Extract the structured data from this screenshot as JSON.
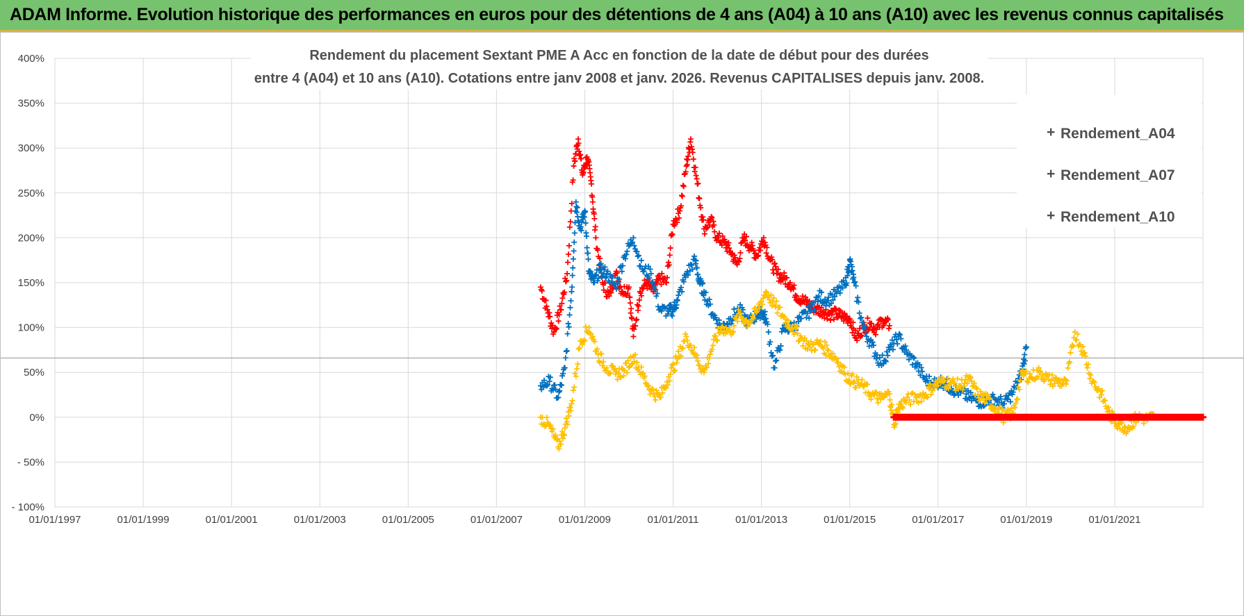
{
  "banner": {
    "title": "ADAM Informe. Evolution historique des performances en euros pour des détentions de 4 ans (A04) à 10 ans (A10) avec les revenus connus capitalisés"
  },
  "colors": {
    "banner_bg": "#77c26e",
    "A04": "#ffc000",
    "A07": "#0070c0",
    "A10": "#ff0000"
  },
  "chart_data": {
    "type": "scatter",
    "title": [
      "Rendement du placement Sextant PME A Acc en fonction de la date de début pour des durées",
      "entre 4 (A04) et 10 ans (A10). Cotations entre janv 2008 et janv. 2026. Revenus CAPITALISES depuis janv. 2008."
    ],
    "xlabel": "",
    "ylabel": "",
    "x_range": [
      1997.0,
      2023.0
    ],
    "ylim": [
      -100,
      400
    ],
    "x_ticks": [
      "01/01/1997",
      "01/01/1999",
      "01/01/2001",
      "01/01/2003",
      "01/01/2005",
      "01/01/2007",
      "01/01/2009",
      "01/01/2011",
      "01/01/2013",
      "01/01/2015",
      "01/01/2017",
      "01/01/2019",
      "01/01/2021"
    ],
    "y_ticks": [
      "- 100%",
      "- 50%",
      "0%",
      "50%",
      "100%",
      "150%",
      "200%",
      "250%",
      "300%",
      "350%",
      "400%"
    ],
    "reference_line_y": 66,
    "legend": {
      "position": "top-right",
      "entries": [
        "Rendement_A04",
        "Rendement_A07",
        "Rendement_A10"
      ]
    },
    "series": [
      {
        "name": "Rendement_A04",
        "x": [
          2008.0,
          2008.2,
          2008.4,
          2008.55,
          2008.7,
          2008.9,
          2009.1,
          2009.3,
          2009.5,
          2009.7,
          2009.9,
          2010.1,
          2010.3,
          2010.5,
          2010.7,
          2010.9,
          2011.1,
          2011.3,
          2011.5,
          2011.7,
          2011.9,
          2012.1,
          2012.3,
          2012.5,
          2012.7,
          2012.9,
          2013.1,
          2013.3,
          2013.5,
          2013.7,
          2013.9,
          2014.1,
          2014.3,
          2014.5,
          2014.7,
          2014.9,
          2015.1,
          2015.3,
          2015.5,
          2015.7,
          2015.9,
          2016.0,
          2016.1,
          2016.25,
          2016.5,
          2016.7,
          2016.9,
          2017.1,
          2017.3,
          2017.5,
          2017.7,
          2017.9,
          2018.1,
          2018.3,
          2018.5,
          2018.7,
          2018.9,
          2019.1,
          2019.3,
          2019.5,
          2019.7,
          2019.9,
          2020.1,
          2020.3,
          2020.5,
          2020.7,
          2020.9,
          2021.1,
          2021.3,
          2021.5,
          2021.7,
          2021.9
        ],
        "y": [
          0,
          -10,
          -33,
          -12,
          15,
          85,
          100,
          70,
          55,
          48,
          52,
          68,
          48,
          30,
          22,
          45,
          65,
          90,
          70,
          50,
          80,
          100,
          95,
          115,
          105,
          118,
          140,
          125,
          112,
          100,
          88,
          78,
          82,
          75,
          65,
          48,
          40,
          35,
          25,
          20,
          26,
          -8,
          10,
          18,
          22,
          25,
          35,
          40,
          38,
          35,
          42,
          25,
          20,
          10,
          0,
          5,
          48,
          45,
          50,
          42,
          40,
          37,
          95,
          72,
          40,
          25,
          2,
          -8,
          -12,
          0,
          -2,
          0
        ],
        "color": "#ffc000"
      },
      {
        "name": "Rendement_A07",
        "x": [
          2008.0,
          2008.2,
          2008.4,
          2008.55,
          2008.7,
          2008.8,
          2008.9,
          2009.0,
          2009.1,
          2009.2,
          2009.35,
          2009.5,
          2009.7,
          2009.9,
          2010.1,
          2010.3,
          2010.5,
          2010.7,
          2010.9,
          2011.0,
          2011.1,
          2011.3,
          2011.5,
          2011.6,
          2011.7,
          2011.9,
          2012.1,
          2012.3,
          2012.5,
          2012.7,
          2012.9,
          2013.0,
          2013.1,
          2013.3,
          2013.5,
          2013.7,
          2013.9,
          2014.1,
          2014.3,
          2014.5,
          2014.7,
          2014.9,
          2015.0,
          2015.1,
          2015.3,
          2015.5,
          2015.7,
          2015.9,
          2016.1,
          2016.3,
          2016.5,
          2016.7,
          2016.9,
          2017.1,
          2017.3,
          2017.5,
          2017.7,
          2017.9,
          2018.1,
          2018.3,
          2018.5,
          2018.7,
          2018.9,
          2019.0
        ],
        "y": [
          35,
          40,
          22,
          55,
          140,
          240,
          210,
          230,
          160,
          150,
          165,
          160,
          145,
          180,
          200,
          165,
          160,
          120,
          118,
          120,
          130,
          160,
          175,
          150,
          140,
          115,
          100,
          110,
          120,
          105,
          115,
          118,
          110,
          55,
          98,
          100,
          110,
          118,
          135,
          130,
          138,
          148,
          175,
          150,
          100,
          80,
          60,
          75,
          90,
          70,
          60,
          42,
          38,
          40,
          32,
          28,
          22,
          18,
          18,
          20,
          15,
          28,
          50,
          78
        ],
        "color": "#0070c0"
      },
      {
        "name": "Rendement_A10",
        "x": [
          2008.0,
          2008.15,
          2008.3,
          2008.45,
          2008.6,
          2008.75,
          2008.85,
          2008.95,
          2009.05,
          2009.15,
          2009.25,
          2009.4,
          2009.55,
          2009.7,
          2009.85,
          2010.0,
          2010.1,
          2010.25,
          2010.4,
          2010.55,
          2010.7,
          2010.85,
          2011.0,
          2011.15,
          2011.3,
          2011.4,
          2011.55,
          2011.7,
          2011.85,
          2012.0,
          2012.15,
          2012.3,
          2012.45,
          2012.6,
          2012.75,
          2012.9,
          2013.05,
          2013.2,
          2013.35,
          2013.5,
          2013.65,
          2013.8,
          2013.95,
          2014.1,
          2014.25,
          2014.4,
          2014.55,
          2014.7,
          2014.85,
          2015.0,
          2015.15,
          2015.3,
          2015.45,
          2015.6,
          2015.75,
          2015.9
        ],
        "y": [
          145,
          120,
          95,
          120,
          160,
          280,
          310,
          270,
          290,
          260,
          200,
          150,
          135,
          160,
          140,
          145,
          90,
          140,
          150,
          140,
          155,
          150,
          215,
          230,
          280,
          310,
          260,
          210,
          220,
          200,
          195,
          185,
          170,
          200,
          190,
          180,
          200,
          175,
          160,
          155,
          150,
          135,
          130,
          125,
          120,
          118,
          115,
          115,
          112,
          110,
          88,
          100,
          105,
          98,
          108,
          102
        ],
        "color": "#ff0000"
      },
      {
        "name": "Rendement_A10 (zero segment)",
        "x": [
          2016.0,
          2017.0,
          2018.0,
          2019.0,
          2020.0,
          2021.0,
          2022.0,
          2023.0
        ],
        "y": [
          0,
          0,
          0,
          0,
          0,
          0,
          0,
          0
        ],
        "color": "#ff0000",
        "style": "thick-flat"
      }
    ]
  }
}
